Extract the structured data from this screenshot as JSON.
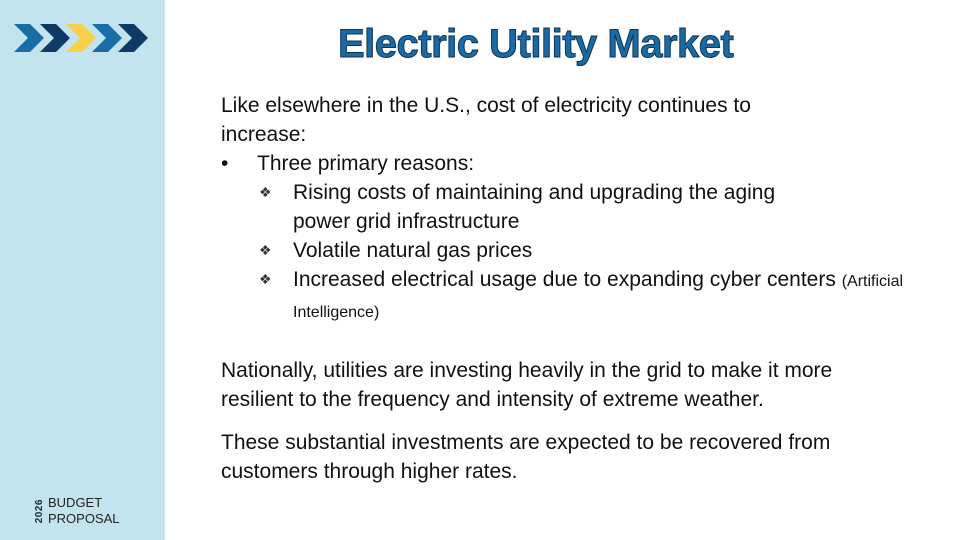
{
  "colors": {
    "sidebar": "#c3e4ee",
    "title": "#1a6aa6",
    "chevrons": [
      "#1a6ea8",
      "#0f3a66",
      "#f6d04d",
      "#1a6ea8",
      "#0f3a66"
    ]
  },
  "logo": {
    "icon": "chevrons-logo"
  },
  "footer": {
    "year": "2026",
    "line1": "BUDGET",
    "line2": "PROPOSAL"
  },
  "title": "Electric Utility Market",
  "intro": "Like elsewhere in the U.S., cost of electricity continues to increase:",
  "bullet": {
    "marker": "•",
    "text": "Three primary reasons:"
  },
  "sub_marker": "❖",
  "reasons": [
    {
      "text": "Rising costs of maintaining and upgrading the aging power grid infrastructure",
      "note": ""
    },
    {
      "text": "Volatile natural gas prices",
      "note": ""
    },
    {
      "text": "Increased electrical usage due to expanding cyber centers",
      "note": "(Artificial Intelligence)"
    }
  ],
  "para2": "Nationally, utilities are investing heavily in the grid to make it more resilient to the frequency and intensity of extreme weather.",
  "para3": "These substantial investments are expected to be recovered from customers through higher rates."
}
